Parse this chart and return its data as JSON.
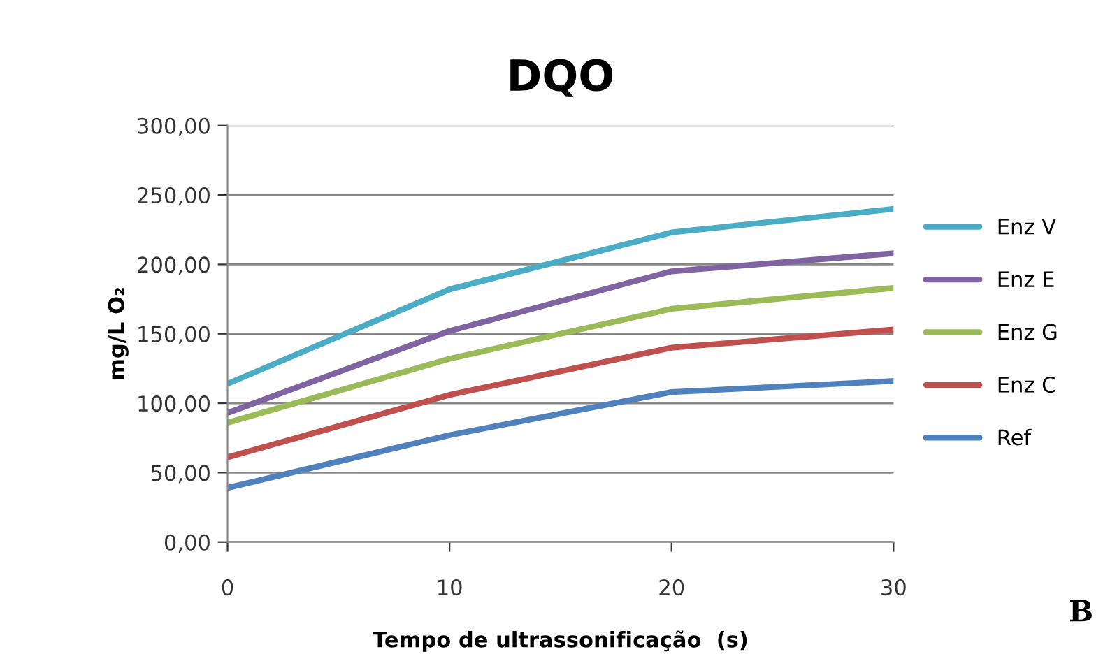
{
  "chart_data": {
    "type": "line",
    "title": "DQO",
    "xlabel": "Tempo de ultrassonificação  (s)",
    "ylabel": "mg/L O₂",
    "x": [
      0,
      10,
      20,
      30
    ],
    "series": [
      {
        "name": "Enz V",
        "color": "#4bacc6",
        "values": [
          114,
          182,
          223,
          240
        ]
      },
      {
        "name": "Enz E",
        "color": "#8064a2",
        "values": [
          93,
          152,
          195,
          208
        ]
      },
      {
        "name": "Enz G",
        "color": "#9bbb59",
        "values": [
          86,
          132,
          168,
          183
        ]
      },
      {
        "name": "Enz C",
        "color": "#c0504d",
        "values": [
          61,
          106,
          140,
          153
        ]
      },
      {
        "name": "Ref",
        "color": "#4f81bd",
        "values": [
          39,
          77,
          108,
          116
        ]
      }
    ],
    "xlim": [
      0,
      30
    ],
    "xticks": [
      0,
      10,
      20,
      30
    ],
    "ylim": [
      0,
      300
    ],
    "yticks": [
      {
        "value": 0,
        "label": "0,00"
      },
      {
        "value": 50,
        "label": "50,00"
      },
      {
        "value": 100,
        "label": "100,00"
      },
      {
        "value": 150,
        "label": "150,00"
      },
      {
        "value": 200,
        "label": "200,00"
      },
      {
        "value": 250,
        "label": "250,00"
      },
      {
        "value": 300,
        "label": "300,00"
      }
    ],
    "grid": "y",
    "legend": "right",
    "marker": "none",
    "line_style": "solid",
    "annotations": [
      "B"
    ]
  }
}
